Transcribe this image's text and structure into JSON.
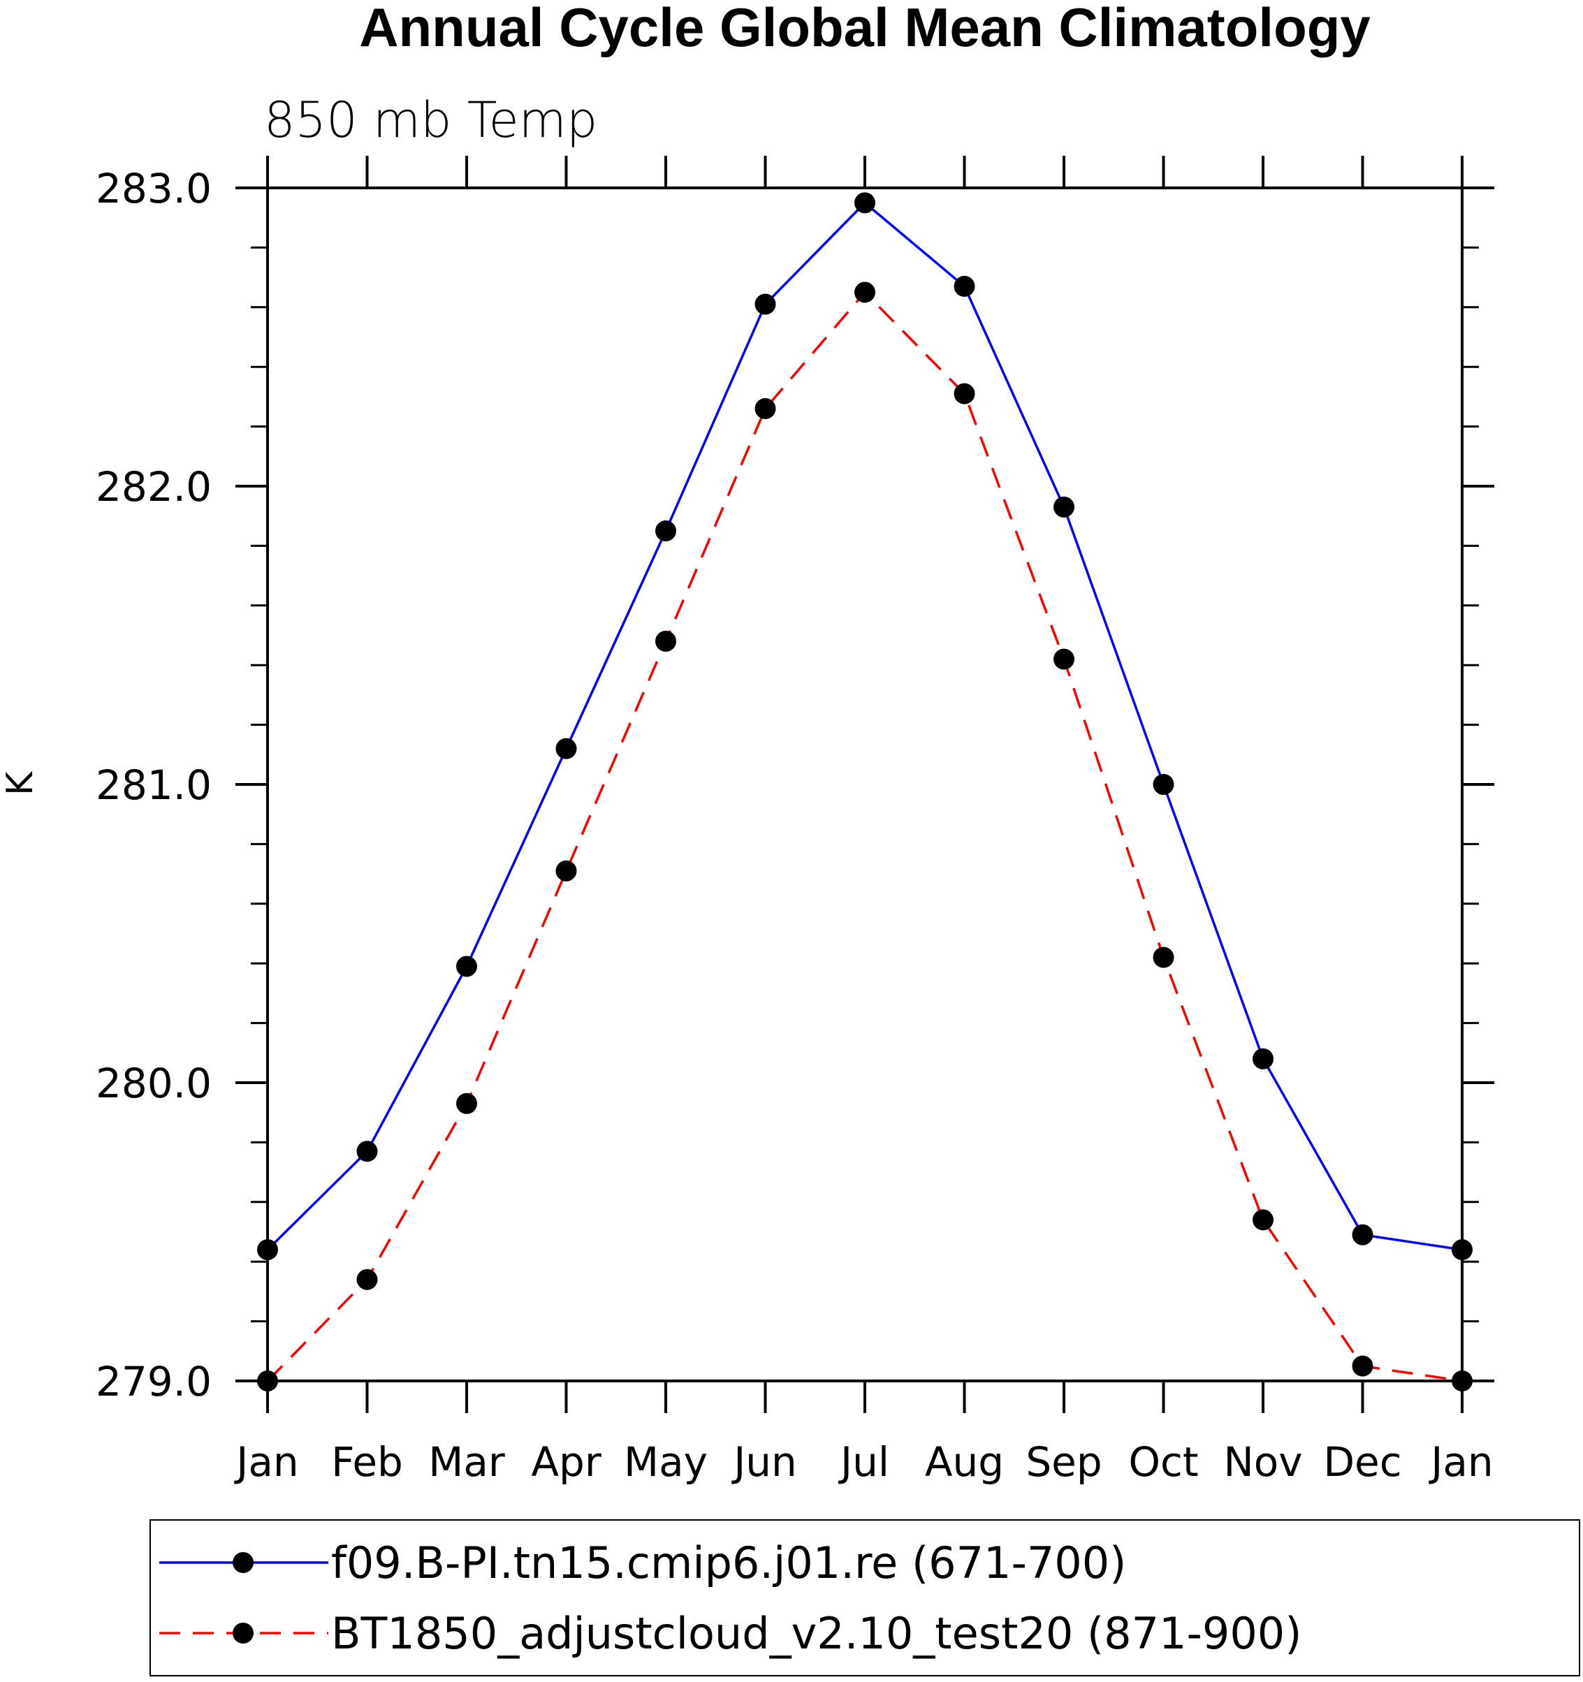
{
  "chart_data": {
    "type": "line",
    "title": "Annual Cycle Global Mean Climatology",
    "subtitle": "850 mb Temp",
    "ylabel": "K",
    "xlabel": "",
    "categories": [
      "Jan",
      "Feb",
      "Mar",
      "Apr",
      "May",
      "Jun",
      "Jul",
      "Aug",
      "Sep",
      "Oct",
      "Nov",
      "Dec",
      "Jan"
    ],
    "ylim": [
      279.0,
      283.0
    ],
    "yticks": [
      "279.0",
      "280.0",
      "281.0",
      "282.0",
      "283.0"
    ],
    "ytick_values": [
      279.0,
      280.0,
      281.0,
      282.0,
      283.0
    ],
    "minor_y_step": 0.2,
    "grid": false,
    "legend_position": "bottom",
    "series": [
      {
        "name": "f09.B-PI.tn15.cmip6.j01.re (671-700)",
        "color": "#0000ff",
        "line_style": "solid",
        "marker": "filled-circle",
        "values": [
          279.44,
          279.77,
          280.39,
          281.12,
          281.85,
          282.61,
          282.95,
          282.67,
          281.93,
          281.0,
          280.08,
          279.49,
          279.44
        ]
      },
      {
        "name": "BT1850_adjustcloud_v2.10_test20 (871-900)",
        "color": "#ff0000",
        "line_style": "dashed",
        "marker": "filled-circle",
        "values": [
          279.0,
          279.34,
          279.93,
          280.71,
          281.48,
          282.26,
          282.65,
          282.31,
          281.42,
          280.42,
          279.54,
          279.05,
          279.0
        ]
      }
    ]
  }
}
